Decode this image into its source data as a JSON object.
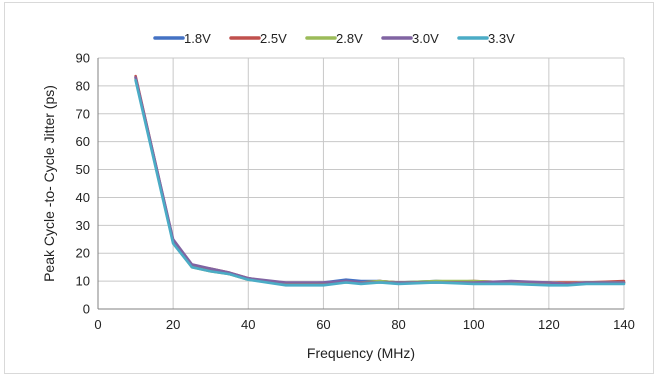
{
  "chart_data": {
    "type": "line",
    "title": "",
    "xlabel": "Frequency (MHz)",
    "ylabel": "Peak Cycle -to- Cycle Jitter (ps)",
    "xlim": [
      0,
      140
    ],
    "ylim": [
      0,
      90
    ],
    "xticks": [
      0,
      20,
      40,
      60,
      80,
      100,
      120,
      140
    ],
    "yticks": [
      0,
      10,
      20,
      30,
      40,
      50,
      60,
      70,
      80,
      90
    ],
    "grid": true,
    "legend_position": "top",
    "series": [
      {
        "name": "1.8V",
        "color": "#4472c4",
        "x": [
          10,
          20,
          25,
          30,
          35,
          40,
          50,
          60,
          66,
          70,
          75,
          80,
          90,
          100,
          110,
          120,
          125,
          130,
          140
        ],
        "y": [
          83,
          24,
          15.5,
          14,
          12.5,
          11,
          9,
          9.5,
          10.5,
          10,
          10,
          9.5,
          10,
          9.5,
          9.5,
          9.5,
          9,
          9.5,
          9.5
        ]
      },
      {
        "name": "2.5V",
        "color": "#c0504d",
        "x": [
          10,
          20,
          25,
          30,
          35,
          40,
          50,
          60,
          66,
          70,
          75,
          80,
          90,
          100,
          110,
          120,
          125,
          130,
          140
        ],
        "y": [
          83.5,
          24.5,
          15.5,
          14.5,
          13,
          11,
          9,
          9,
          10,
          9.5,
          10,
          9.5,
          9.5,
          10,
          9.5,
          9.5,
          9.5,
          9.5,
          10
        ]
      },
      {
        "name": "2.8V",
        "color": "#9bbb59",
        "x": [
          10,
          20,
          25,
          30,
          35,
          40,
          50,
          60,
          66,
          70,
          75,
          80,
          90,
          100,
          110,
          120,
          125,
          130,
          140
        ],
        "y": [
          82.5,
          24,
          15,
          13.5,
          12.5,
          10.5,
          9,
          9,
          9.5,
          9.5,
          10,
          9.5,
          10,
          10,
          9.5,
          9.5,
          9,
          9.5,
          9.5
        ]
      },
      {
        "name": "3.0V",
        "color": "#8064a2",
        "x": [
          10,
          20,
          25,
          30,
          35,
          40,
          50,
          60,
          66,
          70,
          75,
          80,
          90,
          100,
          110,
          120,
          125,
          130,
          140
        ],
        "y": [
          83,
          25,
          16,
          14.5,
          13,
          11,
          9.5,
          9.5,
          10,
          9.5,
          9.5,
          9.5,
          9.5,
          9.5,
          10,
          9.5,
          9,
          9.5,
          9.5
        ]
      },
      {
        "name": "3.3V",
        "color": "#4bacc6",
        "x": [
          10,
          20,
          25,
          30,
          35,
          40,
          50,
          60,
          66,
          70,
          75,
          80,
          90,
          100,
          110,
          120,
          125,
          130,
          140
        ],
        "y": [
          82,
          23.5,
          15,
          13.5,
          12.5,
          10.5,
          8.5,
          8.5,
          9.5,
          9,
          9.5,
          9,
          9.5,
          9,
          9,
          8.5,
          8.5,
          9,
          9
        ]
      }
    ]
  }
}
